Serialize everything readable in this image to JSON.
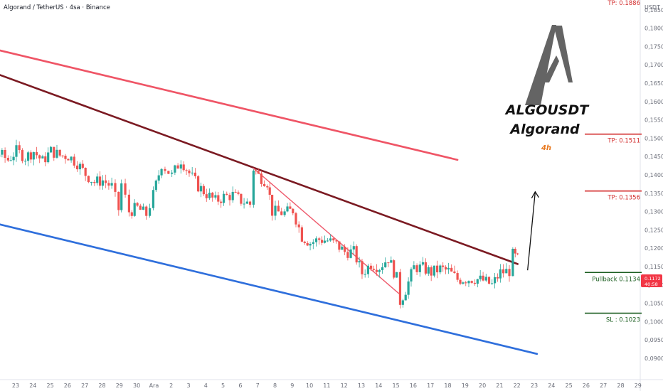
{
  "header": {
    "title": "Algorand / TetherUS · 4sa · Binance",
    "currency": "USDT"
  },
  "branding": {
    "symbol": "ALGOUSDT",
    "name": "Algorand",
    "timeframe": "4h",
    "timeframe_color": "#e8781e"
  },
  "price_tag": {
    "price": "0.1172",
    "countdown": "40:58",
    "color": "#f23645"
  },
  "levels": [
    {
      "id": "tp3",
      "label": "TP: 0.1886",
      "value": 0.1886,
      "color": "#d32f2f"
    },
    {
      "id": "tp2",
      "label": "TP: 0.1511",
      "value": 0.1511,
      "color": "#d32f2f"
    },
    {
      "id": "tp1",
      "label": "TP: 0.1356",
      "value": 0.1356,
      "color": "#d32f2f"
    },
    {
      "id": "pullback",
      "label": "Pullback 0.1134",
      "value": 0.1134,
      "color": "#1b5e20"
    },
    {
      "id": "sl",
      "label": "SL : 0.1023",
      "value": 0.1023,
      "color": "#1b5e20"
    }
  ],
  "colors": {
    "up": "#26a69a",
    "down": "#ef5350",
    "upper_channel": "#ef5566",
    "resistance": "#7b1a22",
    "support": "#2f6fdc",
    "inner_line": "#ee5b6d",
    "logo": "#646464"
  },
  "chart_data": {
    "type": "candlestick",
    "title": "Algorand / TetherUS · 4sa · Binance",
    "y_unit": "USDT",
    "ylim": [
      0.0882,
      0.1902
    ],
    "y_ticks": [
      "0,0900",
      "0,0950",
      "0,1000",
      "0,1050",
      "0,1100",
      "0,1150",
      "0,1200",
      "0,1250",
      "0,1300",
      "0,1350",
      "0,1400",
      "0,1450",
      "0,1500",
      "0,1550",
      "0,1600",
      "0,1650",
      "0,1700",
      "0,1750",
      "0,1800",
      "0,1850"
    ],
    "x_ticks": [
      "23",
      "24",
      "25",
      "26",
      "27",
      "28",
      "29",
      "30",
      "Ara",
      "2",
      "3",
      "4",
      "5",
      "6",
      "7",
      "8",
      "9",
      "10",
      "11",
      "12",
      "13",
      "14",
      "15",
      "16",
      "17",
      "18",
      "19",
      "20",
      "21",
      "22",
      "23",
      "24",
      "25",
      "26",
      "27",
      "28",
      "29"
    ],
    "grid": false,
    "trendlines": [
      {
        "name": "upper-channel",
        "points": [
          [
            -4.44,
            0.1779
          ],
          [
            25.56,
            0.1441
          ]
        ]
      },
      {
        "name": "resistance",
        "points": [
          [
            -4.44,
            0.1733
          ],
          [
            29.04,
            0.1157
          ]
        ]
      },
      {
        "name": "support",
        "points": [
          [
            -4.44,
            0.1305
          ],
          [
            30.16,
            0.0912
          ]
        ]
      },
      {
        "name": "inner-decline",
        "points": [
          [
            13.76,
            0.1418
          ],
          [
            22.16,
            0.1077
          ]
        ]
      }
    ],
    "projection_arrow": {
      "from": [
        29.04,
        0.114
      ],
      "to": [
        29.48,
        0.1354
      ]
    },
    "candle_path": [
      [
        -4.44,
        0.1365
      ],
      [
        -3.72,
        0.133
      ],
      [
        -3.28,
        0.1368
      ],
      [
        -2.96,
        0.1399
      ],
      [
        -2.44,
        0.1432
      ],
      [
        -1.96,
        0.1399
      ],
      [
        -1.44,
        0.1436
      ],
      [
        -0.96,
        0.1458
      ],
      [
        -0.44,
        0.1441
      ],
      [
        0.04,
        0.1465
      ],
      [
        0.56,
        0.1448
      ],
      [
        1.04,
        0.1464
      ],
      [
        1.56,
        0.1437
      ],
      [
        2.04,
        0.1465
      ],
      [
        2.56,
        0.1453
      ],
      [
        3.04,
        0.1452
      ],
      [
        3.56,
        0.1432
      ],
      [
        4.04,
        0.1402
      ],
      [
        4.56,
        0.138
      ],
      [
        5.04,
        0.1385
      ],
      [
        5.56,
        0.1368
      ],
      [
        5.96,
        0.1306
      ],
      [
        6.12,
        0.1375
      ],
      [
        6.56,
        0.13
      ],
      [
        7.04,
        0.131
      ],
      [
        7.56,
        0.1292
      ],
      [
        7.96,
        0.1345
      ],
      [
        8.44,
        0.143
      ],
      [
        9.04,
        0.1398
      ],
      [
        9.56,
        0.1441
      ],
      [
        10.04,
        0.1405
      ],
      [
        10.56,
        0.1369
      ],
      [
        11.04,
        0.1348
      ],
      [
        11.56,
        0.1329
      ],
      [
        12.04,
        0.134
      ],
      [
        12.56,
        0.1345
      ],
      [
        13.04,
        0.133
      ],
      [
        13.56,
        0.132
      ],
      [
        13.76,
        0.1418
      ],
      [
        14.04,
        0.1398
      ],
      [
        14.56,
        0.138
      ],
      [
        14.84,
        0.13
      ],
      [
        15.56,
        0.1296
      ],
      [
        16.04,
        0.1304
      ],
      [
        16.56,
        0.1232
      ],
      [
        17.04,
        0.1215
      ],
      [
        17.56,
        0.1224
      ],
      [
        18.04,
        0.1221
      ],
      [
        18.56,
        0.121
      ],
      [
        19.04,
        0.119
      ],
      [
        19.56,
        0.119
      ],
      [
        20.04,
        0.1132
      ],
      [
        20.56,
        0.1158
      ],
      [
        21.04,
        0.1149
      ],
      [
        21.56,
        0.1173
      ],
      [
        22.04,
        0.1118
      ],
      [
        22.24,
        0.1055
      ],
      [
        22.56,
        0.1087
      ],
      [
        23.04,
        0.1148
      ],
      [
        23.56,
        0.1146
      ],
      [
        24.04,
        0.1134
      ],
      [
        24.56,
        0.1144
      ],
      [
        25.04,
        0.1138
      ],
      [
        25.56,
        0.1115
      ],
      [
        26.04,
        0.1116
      ],
      [
        26.56,
        0.1117
      ],
      [
        27.04,
        0.1112
      ],
      [
        27.56,
        0.11
      ],
      [
        28.04,
        0.1134
      ],
      [
        28.56,
        0.1138
      ],
      [
        28.76,
        0.1182
      ],
      [
        29.04,
        0.117
      ]
    ]
  }
}
